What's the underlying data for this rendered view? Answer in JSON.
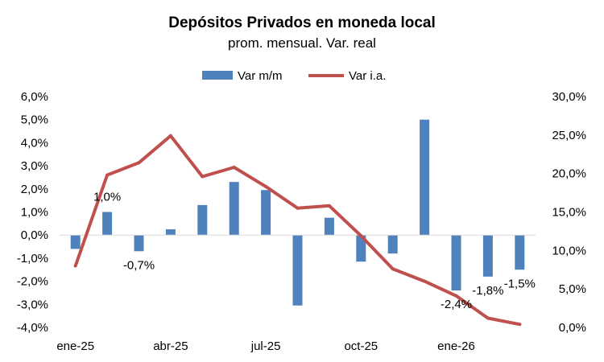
{
  "chart_data": {
    "type": "bar+line",
    "title": "Depósitos Privados en moneda local",
    "subtitle": "prom. mensual. Var. real",
    "categories": [
      "ene-25",
      "feb-25",
      "mar-25",
      "abr-25",
      "may-25",
      "jun-25",
      "jul-25",
      "ago-25",
      "sep-25",
      "oct-25",
      "nov-25",
      "dic-25",
      "ene-26",
      "feb-26",
      "mar-26"
    ],
    "x_tick_labels": [
      "ene-25",
      "abr-25",
      "jul-25",
      "oct-25",
      "ene-26"
    ],
    "series": [
      {
        "name": "Var m/m",
        "type": "bar",
        "axis": "left",
        "color": "#4F81BD",
        "values": [
          -0.6,
          1.0,
          -0.7,
          0.25,
          1.3,
          2.3,
          1.95,
          -3.05,
          0.75,
          -1.15,
          -0.8,
          5.0,
          -2.4,
          -1.8,
          -1.5
        ],
        "labels": {
          "1": "1,0%",
          "2": "-0,7%",
          "12": "-2,4%",
          "13": "-1,8%",
          "14": "-1,5%"
        }
      },
      {
        "name": "Var i.a.",
        "type": "line",
        "axis": "right",
        "color": "#C0504D",
        "values": [
          8.0,
          19.8,
          21.4,
          24.9,
          19.6,
          20.8,
          18.3,
          15.5,
          15.8,
          11.9,
          7.6,
          6.0,
          4.1,
          1.2,
          0.4
        ]
      }
    ],
    "y_left": {
      "min": -4.0,
      "max": 6.0,
      "step": 1.0,
      "tick_labels": [
        "6,0%",
        "5,0%",
        "4,0%",
        "3,0%",
        "2,0%",
        "1,0%",
        "0,0%",
        "-1,0%",
        "-2,0%",
        "-3,0%",
        "-4,0%"
      ]
    },
    "y_right": {
      "min": 0.0,
      "max": 30.0,
      "step": 5.0,
      "tick_labels": [
        "30,0%",
        "25,0%",
        "20,0%",
        "15,0%",
        "10,0%",
        "5,0%",
        "0,0%"
      ]
    },
    "legend": {
      "position": "top-center",
      "items": [
        "Var m/m",
        "Var i.a."
      ]
    },
    "grid": false
  }
}
